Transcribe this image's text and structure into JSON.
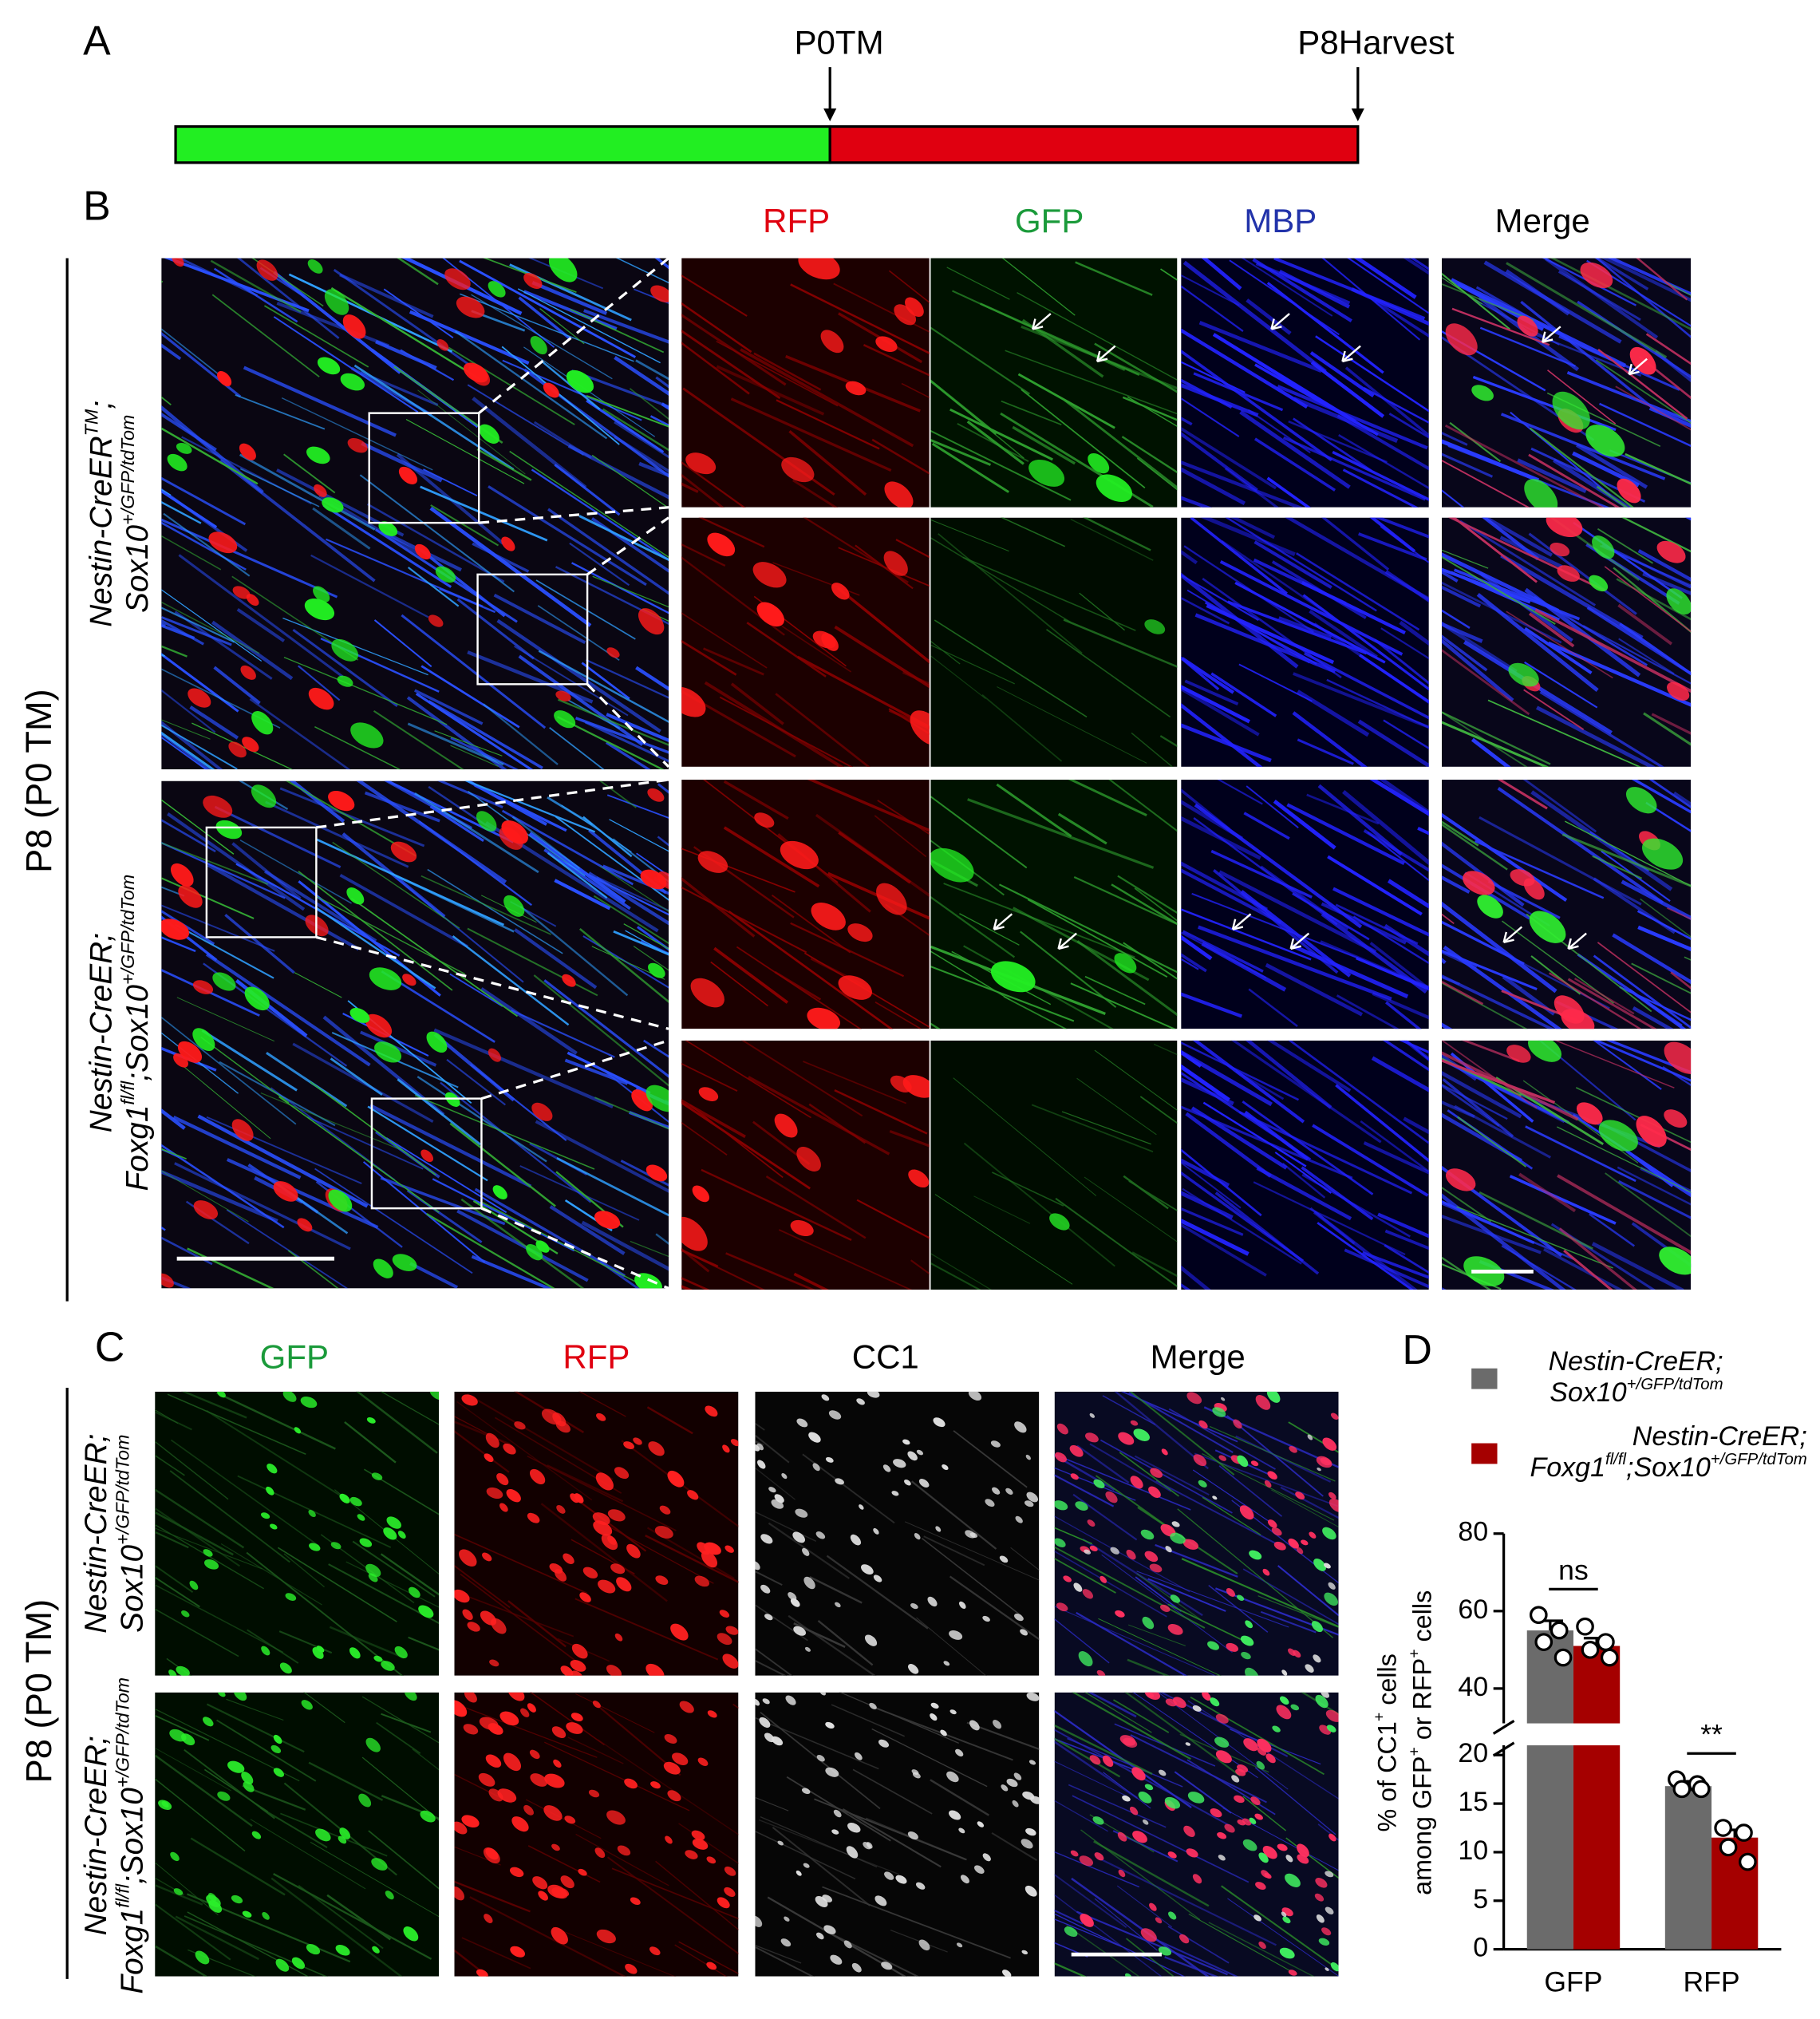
{
  "panel_labels": [
    "A",
    "B",
    "C",
    "D"
  ],
  "timeline": {
    "start_label": "P0TM",
    "end_label": "P8Harvest"
  },
  "panel_b": {
    "columns": [
      "RFP",
      "GFP",
      "MBP",
      "Merge"
    ],
    "side_label": "P8 (P0 TM)",
    "rows": [
      [
        [
          {
            "text": "Nestin-CreER"
          },
          {
            "text": "TM",
            "sup": true
          },
          {
            "text": ";"
          }
        ],
        [
          {
            "text": "Sox10"
          },
          {
            "text": "+/GFP/tdTom",
            "sup": true
          }
        ]
      ],
      [
        [
          {
            "text": "Nestin-CreER;"
          }
        ],
        [
          {
            "text": "Foxg1"
          },
          {
            "text": "fl/fl",
            "sup": true
          },
          {
            "text": ";Sox10"
          },
          {
            "text": "+/GFP/tdTom",
            "sup": true
          }
        ]
      ]
    ]
  },
  "panel_c": {
    "columns": [
      "GFP",
      "RFP",
      "CC1",
      "Merge"
    ],
    "side_label": "P8 (P0 TM)",
    "rows": [
      [
        [
          {
            "text": "Nestin-CreER;"
          }
        ],
        [
          {
            "text": "Sox10"
          },
          {
            "text": "+/GFP/tdTom",
            "sup": true
          }
        ]
      ],
      [
        [
          {
            "text": "Nestin-CreER;"
          }
        ],
        [
          {
            "text": "Foxg1"
          },
          {
            "text": "fl/fl",
            "sup": true
          },
          {
            "text": ";Sox10"
          },
          {
            "text": "+/GFP/tdTom",
            "sup": true
          }
        ]
      ]
    ]
  },
  "chart_data": {
    "type": "bar",
    "categories": [
      "GFP",
      "RFP"
    ],
    "ylabel": [
      [
        {
          "text": "% of CC1"
        },
        {
          "text": "+",
          "sup": true
        },
        {
          "text": " cells"
        }
      ],
      [
        {
          "text": "among GFP"
        },
        {
          "text": "+",
          "sup": true
        },
        {
          "text": " or RFP"
        },
        {
          "text": "+",
          "sup": true
        },
        {
          "text": " cells"
        }
      ]
    ],
    "ylim_lower": [
      0,
      21
    ],
    "yticks_lower": [
      0,
      5,
      10,
      15,
      20
    ],
    "ylim_upper": [
      31,
      80
    ],
    "yticks_upper": [
      40,
      60,
      80
    ],
    "significance": [
      "ns",
      "**"
    ],
    "series": [
      {
        "name": [
          [
            {
              "text": "Nestin-CreER;"
            }
          ],
          [
            {
              "text": "Sox10"
            },
            {
              "text": "+/GFP/tdTom",
              "sup": true
            }
          ]
        ],
        "color": "#6b6b6b",
        "values": [
          55,
          16.8
        ],
        "errors": [
          2.5,
          0.5
        ],
        "points": [
          [
            59,
            55,
            52,
            48
          ],
          [
            17.5,
            17,
            16.5,
            16.5
          ]
        ]
      },
      {
        "name": [
          [
            {
              "text": "Nestin-CreER;"
            }
          ],
          [
            {
              "text": "Foxg1"
            },
            {
              "text": "fl/fl",
              "sup": true
            },
            {
              "text": ";Sox10"
            },
            {
              "text": "+/GFP/tdTom",
              "sup": true
            }
          ]
        ],
        "color": "#a50000",
        "values": [
          51,
          11.5
        ],
        "errors": [
          2,
          0.8
        ],
        "points": [
          [
            56,
            52,
            50,
            48
          ],
          [
            12.5,
            12,
            10.5,
            9
          ]
        ]
      }
    ]
  }
}
